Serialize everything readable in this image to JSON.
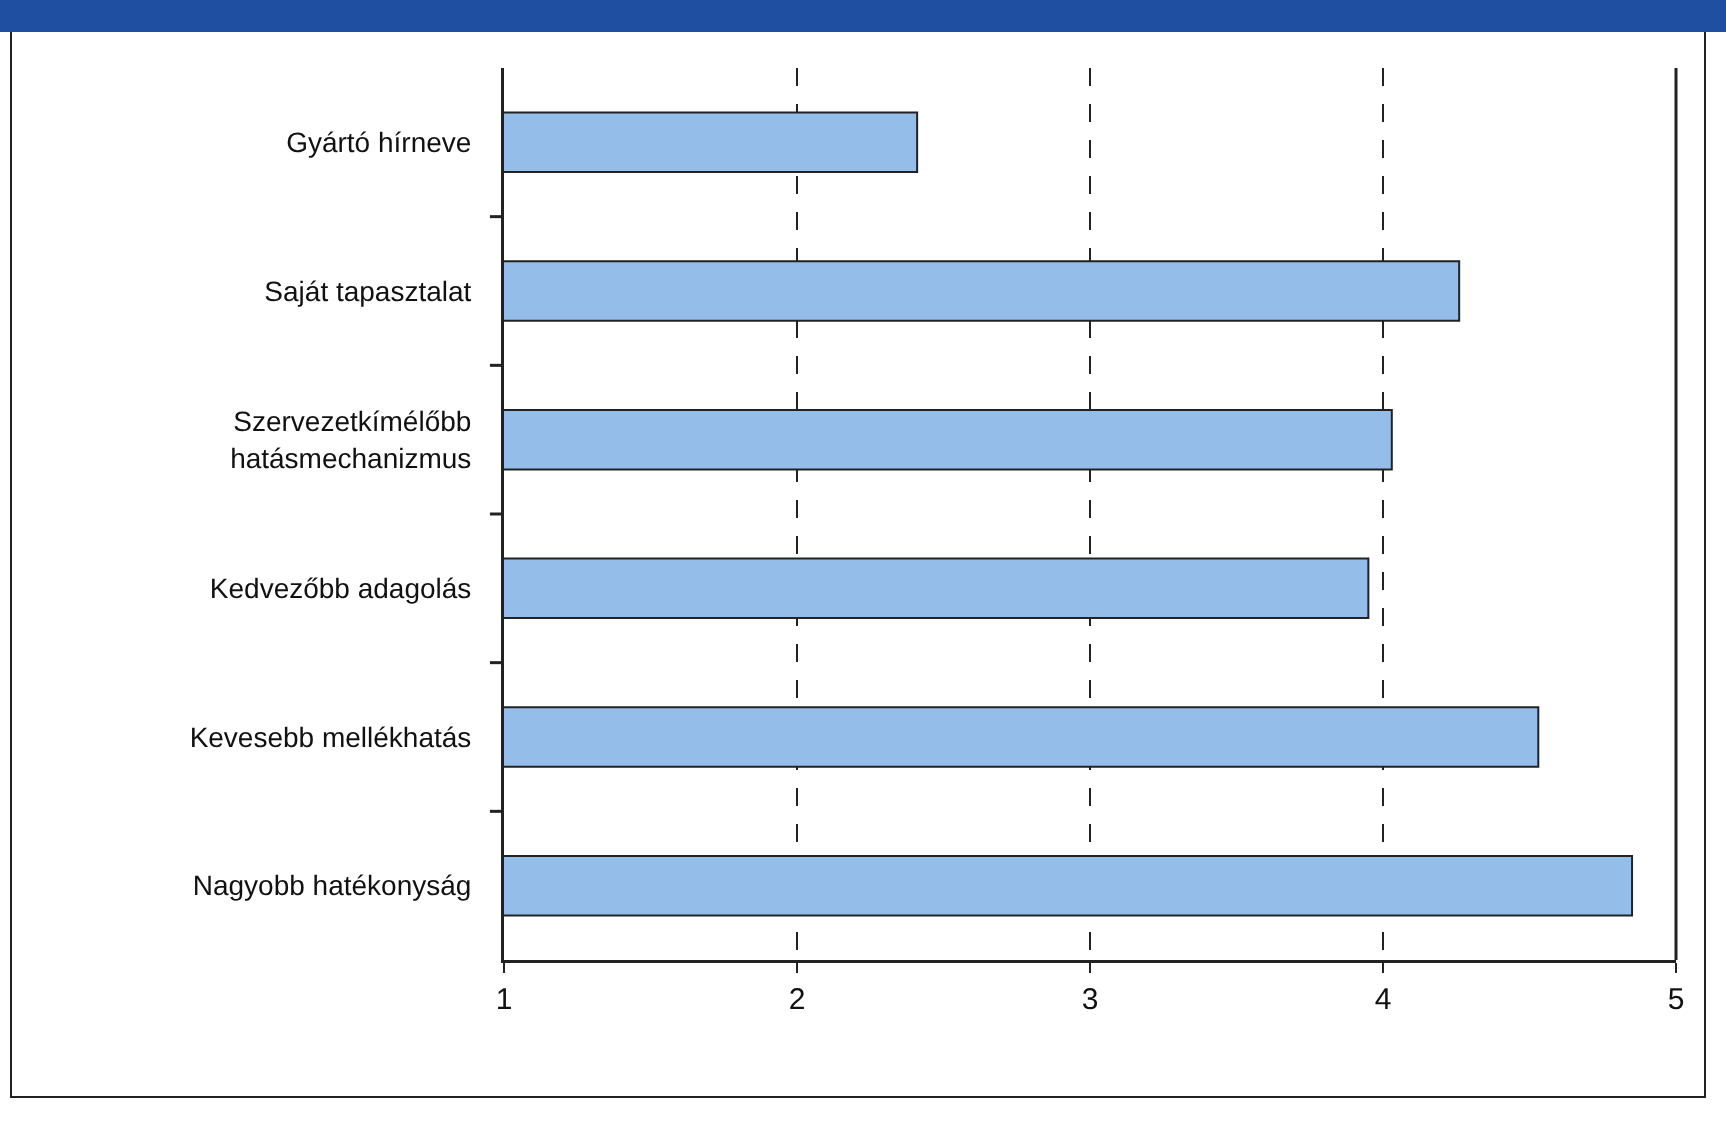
{
  "chart_data": {
    "type": "bar",
    "orientation": "horizontal",
    "categories": [
      "Gyártó hírneve",
      "Saját tapasztalat",
      "Szervezetkímélőbb hatásmechanizmus",
      "Kedvezőbb adagolás",
      "Kevesebb mellékhatás",
      "Nagyobb hatékonyság"
    ],
    "values": [
      2.41,
      4.26,
      4.03,
      3.95,
      4.53,
      4.85
    ],
    "color": "#94bde9",
    "xlim": [
      1,
      5
    ],
    "xticks": [
      1,
      2,
      3,
      4,
      5
    ],
    "grid": "x"
  }
}
